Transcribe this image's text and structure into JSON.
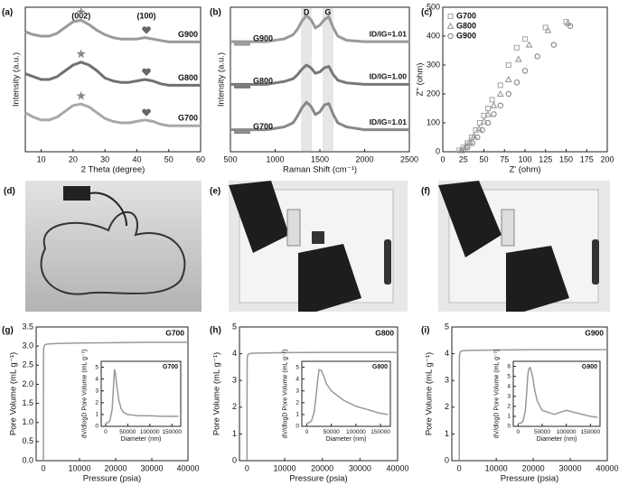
{
  "chart_data": [
    {
      "type": "line",
      "label": "(a)",
      "xlabel": "2 Theta (degree)",
      "ylabel": "Intensity (a.u.)",
      "xlim": [
        5,
        60
      ],
      "xticks": [
        10,
        20,
        30,
        40,
        50,
        60
      ],
      "ylim": [
        0,
        10
      ],
      "annotations": [
        "(002)",
        "(100)"
      ],
      "x": [
        5,
        7.5,
        10,
        12.5,
        15,
        17.5,
        20,
        22.5,
        25,
        27.5,
        30,
        32.5,
        35,
        37.5,
        40,
        42.5,
        45,
        47.5,
        50,
        52.5,
        55,
        57.5,
        60
      ],
      "series": [
        {
          "name": "G900",
          "color": "#9a9a9a",
          "values": [
            8.3,
            8.1,
            8.0,
            8.0,
            8.2,
            8.6,
            9.0,
            9.1,
            8.8,
            8.4,
            8.1,
            7.9,
            7.8,
            7.8,
            7.8,
            7.9,
            7.8,
            7.7,
            7.6,
            7.6,
            7.6,
            7.6,
            7.6
          ]
        },
        {
          "name": "G800",
          "color": "#707070",
          "values": [
            5.4,
            5.2,
            5.0,
            5.0,
            5.2,
            5.6,
            6.0,
            6.2,
            6.0,
            5.6,
            5.1,
            4.9,
            4.8,
            4.8,
            4.9,
            5.0,
            4.9,
            4.7,
            4.6,
            4.6,
            4.6,
            4.6,
            4.6
          ]
        },
        {
          "name": "G700",
          "color": "#a8a8a8",
          "values": [
            2.7,
            2.4,
            2.2,
            2.2,
            2.4,
            2.8,
            3.2,
            3.3,
            3.1,
            2.7,
            2.3,
            2.1,
            2.0,
            2.0,
            2.1,
            2.2,
            2.1,
            1.9,
            1.8,
            1.8,
            1.8,
            1.8,
            1.8
          ]
        }
      ]
    },
    {
      "type": "line",
      "label": "(b)",
      "xlabel": "Raman Shift (cm⁻¹)",
      "ylabel": "Intensity (a.u.)",
      "xlim": [
        500,
        2500
      ],
      "xticks": [
        500,
        1000,
        1500,
        2000,
        2500
      ],
      "ylim": [
        0,
        10.5
      ],
      "annotations": [
        "D",
        "G"
      ],
      "x": [
        500,
        700,
        900,
        1000,
        1100,
        1200,
        1250,
        1300,
        1350,
        1400,
        1450,
        1500,
        1550,
        1600,
        1650,
        1700,
        1800,
        2000,
        2200,
        2500
      ],
      "series": [
        {
          "name": "G900",
          "color": "#999999",
          "ratio_label": "ID/IG=1.01",
          "values": [
            8.0,
            8.0,
            8.0,
            8.1,
            8.2,
            8.5,
            8.9,
            9.5,
            9.9,
            9.6,
            9.0,
            9.2,
            9.6,
            9.8,
            9.0,
            8.4,
            8.1,
            8.0,
            8.0,
            8.0
          ]
        },
        {
          "name": "G800",
          "color": "#777777",
          "ratio_label": "ID/IG=1.00",
          "values": [
            4.9,
            4.9,
            4.9,
            5.0,
            5.1,
            5.3,
            5.6,
            6.0,
            6.3,
            6.1,
            5.7,
            5.8,
            6.1,
            6.2,
            5.6,
            5.2,
            5.0,
            4.9,
            4.9,
            4.9
          ]
        },
        {
          "name": "G700",
          "color": "#888888",
          "ratio_label": "ID/IG=1.01",
          "values": [
            1.6,
            1.6,
            1.6,
            1.7,
            1.8,
            2.1,
            2.6,
            3.2,
            3.6,
            3.3,
            2.7,
            2.9,
            3.4,
            3.5,
            2.7,
            2.1,
            1.8,
            1.6,
            1.6,
            1.6
          ]
        }
      ]
    },
    {
      "type": "scatter",
      "label": "(c)",
      "xlabel": "Z' (ohm)",
      "ylabel": "Z'' (ohm)",
      "xlim": [
        0,
        200
      ],
      "xticks": [
        0,
        25,
        50,
        75,
        100,
        125,
        150,
        175,
        200
      ],
      "ylim": [
        0,
        500
      ],
      "yticks": [
        0,
        100,
        200,
        300,
        400,
        500
      ],
      "series": [
        {
          "name": "G700",
          "color": "#aaaaaa",
          "marker": "square",
          "x": [
            20,
            25,
            30,
            35,
            40,
            45,
            50,
            55,
            60,
            70,
            80,
            90,
            100,
            125,
            150
          ],
          "values": [
            5,
            15,
            30,
            50,
            75,
            100,
            125,
            150,
            180,
            230,
            300,
            360,
            390,
            430,
            450
          ]
        },
        {
          "name": "G800",
          "color": "#999999",
          "marker": "triangle",
          "x": [
            22,
            28,
            33,
            38,
            44,
            50,
            55,
            62,
            70,
            80,
            92,
            105,
            128,
            152
          ],
          "values": [
            5,
            20,
            35,
            55,
            80,
            105,
            130,
            160,
            200,
            250,
            320,
            370,
            420,
            445
          ]
        },
        {
          "name": "G900",
          "color": "#888888",
          "marker": "circle",
          "x": [
            25,
            30,
            36,
            42,
            48,
            55,
            62,
            70,
            80,
            90,
            100,
            115,
            135,
            155
          ],
          "values": [
            5,
            15,
            30,
            50,
            75,
            100,
            130,
            160,
            200,
            240,
            280,
            330,
            370,
            435
          ]
        }
      ]
    },
    {
      "type": "line",
      "label": "(g)",
      "xlabel": "Pressure (psia)",
      "ylabel": "Pore Volume (mL g⁻¹)",
      "xlim": [
        -2000,
        40000
      ],
      "xticks": [
        0,
        10000,
        20000,
        30000,
        40000
      ],
      "ylim": [
        0,
        3.5
      ],
      "yticks": [
        {
          "value": 0,
          "label": "0.0"
        },
        {
          "value": 0.5,
          "label": "0.5"
        },
        {
          "value": 1,
          "label": "1.0"
        },
        {
          "value": 1.5,
          "label": "1.5"
        },
        {
          "value": 2,
          "label": "2.0"
        },
        {
          "value": 2.5,
          "label": "2.5"
        },
        {
          "value": 3,
          "label": "3.0"
        },
        {
          "value": 3.5,
          "label": "3.5"
        }
      ],
      "x": [
        0,
        0,
        50,
        200,
        500,
        1000,
        2000,
        5000,
        10000,
        20000,
        30000,
        40000
      ],
      "series": [
        {
          "name": "G700",
          "color": "#999999",
          "values": [
            0,
            1.6,
            2.9,
            3.0,
            3.04,
            3.05,
            3.06,
            3.07,
            3.08,
            3.09,
            3.1,
            3.1
          ]
        }
      ],
      "inset": {
        "xlabel": "Diameter (nm)",
        "ylabel": "dV/dlogD Pore Volume (mL g⁻¹)",
        "xlim": [
          -10000,
          170000
        ],
        "xticks": [
          0,
          50000,
          100000,
          150000
        ],
        "ylim": [
          0,
          5.5
        ],
        "yticks": [
          0,
          1,
          2,
          3,
          4,
          5
        ],
        "x": [
          0,
          5000,
          10000,
          15000,
          18000,
          20000,
          22000,
          25000,
          30000,
          35000,
          40000,
          50000,
          75000,
          100000,
          125000,
          150000,
          165000
        ],
        "series": [
          {
            "name": "G700",
            "color": "#999999",
            "values": [
              0.3,
              0.3,
              0.5,
              1.5,
              3.5,
              4.8,
              4.5,
              3.5,
              2.2,
              1.5,
              1.2,
              1.0,
              0.9,
              0.9,
              0.85,
              0.85,
              0.85
            ]
          }
        ]
      }
    },
    {
      "type": "line",
      "label": "(h)",
      "xlabel": "Pressure (psia)",
      "ylabel": "Pore Volume (mL g⁻¹)",
      "xlim": [
        -2000,
        40000
      ],
      "xticks": [
        0,
        10000,
        20000,
        30000,
        40000
      ],
      "ylim": [
        0,
        5
      ],
      "yticks": [
        0,
        1,
        2,
        3,
        4,
        5
      ],
      "x": [
        0,
        0,
        50,
        200,
        500,
        1000,
        2000,
        5000,
        10000,
        20000,
        30000,
        40000
      ],
      "series": [
        {
          "name": "G800",
          "color": "#999999",
          "values": [
            0,
            2.0,
            3.8,
            3.95,
            4.0,
            4.01,
            4.02,
            4.03,
            4.04,
            4.05,
            4.05,
            4.05
          ]
        }
      ],
      "inset": {
        "xlabel": "Diameter (nm)",
        "ylabel": "dV/dlogD Pore Volume (mL g⁻¹)",
        "xlim": [
          -10000,
          170000
        ],
        "xticks": [
          0,
          50000,
          100000,
          150000
        ],
        "ylim": [
          0,
          5.5
        ],
        "yticks": [
          0,
          1,
          2,
          3,
          4,
          5
        ],
        "x": [
          0,
          5000,
          10000,
          15000,
          18000,
          20000,
          22000,
          25000,
          30000,
          35000,
          40000,
          50000,
          75000,
          100000,
          125000,
          150000,
          165000
        ],
        "series": [
          {
            "name": "G800",
            "color": "#999999",
            "values": [
              0.3,
              0.3,
              0.5,
              1.2,
              2.2,
              3.0,
              3.8,
              4.8,
              4.7,
              4.2,
              3.6,
              3.0,
              2.2,
              1.7,
              1.4,
              1.1,
              1.0
            ]
          }
        ]
      }
    },
    {
      "type": "line",
      "label": "(i)",
      "xlabel": "Pressure (psia)",
      "ylabel": "Pore Volume (mL g⁻¹)",
      "xlim": [
        -2000,
        40000
      ],
      "xticks": [
        0,
        10000,
        20000,
        30000,
        40000
      ],
      "ylim": [
        0,
        5
      ],
      "yticks": [
        0,
        1,
        2,
        3,
        4,
        5
      ],
      "x": [
        0,
        0,
        50,
        200,
        500,
        1000,
        2000,
        5000,
        10000,
        20000,
        30000,
        40000
      ],
      "series": [
        {
          "name": "G900",
          "color": "#999999",
          "values": [
            0,
            2.0,
            3.9,
            4.05,
            4.1,
            4.11,
            4.12,
            4.13,
            4.14,
            4.15,
            4.15,
            4.15
          ]
        }
      ],
      "inset": {
        "xlabel": "Diameter (nm)",
        "ylabel": "dV/dlogD Pore Volume (mL g⁻¹)",
        "xlim": [
          -10000,
          170000
        ],
        "xticks": [
          0,
          50000,
          100000,
          150000
        ],
        "ylim": [
          0,
          6.5
        ],
        "yticks": [
          0,
          1,
          2,
          3,
          4,
          5,
          6
        ],
        "x": [
          0,
          5000,
          10000,
          15000,
          18000,
          20000,
          22000,
          25000,
          30000,
          35000,
          40000,
          50000,
          75000,
          100000,
          125000,
          150000,
          165000
        ],
        "series": [
          {
            "name": "G900",
            "color": "#999999",
            "values": [
              0.3,
              0.3,
              0.5,
              1.5,
              3.5,
              5.0,
              5.7,
              5.9,
              5.0,
              3.5,
              2.5,
              1.6,
              1.2,
              1.6,
              1.3,
              1.0,
              0.9
            ]
          }
        ]
      }
    }
  ],
  "photos": [
    {
      "label": "(d)"
    },
    {
      "label": "(e)"
    },
    {
      "label": "(f)"
    }
  ]
}
